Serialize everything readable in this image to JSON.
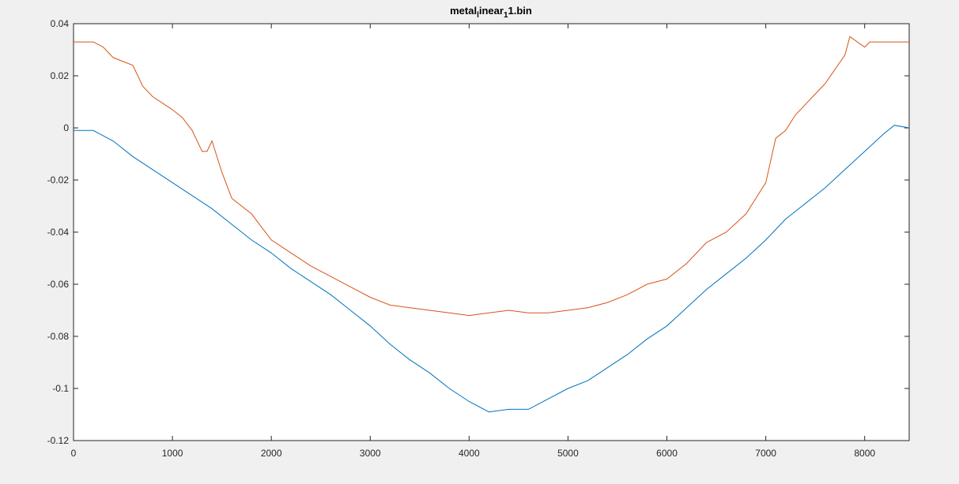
{
  "chart_data": {
    "type": "line",
    "title_parts": [
      {
        "text": "metal"
      },
      {
        "text": "l",
        "baseline": "sub"
      },
      {
        "text": "inear"
      },
      {
        "text": "1",
        "baseline": "sub"
      },
      {
        "text": "1.bin"
      }
    ],
    "xlim": [
      0,
      8450
    ],
    "xticks": [
      0,
      1000,
      2000,
      3000,
      4000,
      5000,
      6000,
      7000,
      8000
    ],
    "ylim": [
      -0.12,
      0.04
    ],
    "yticks": [
      -0.12,
      -0.1,
      -0.08,
      -0.06,
      -0.04,
      -0.02,
      0,
      0.02,
      0.04
    ],
    "grid": false,
    "series": [
      {
        "color": "#0072bd",
        "x": [
          0,
          200,
          400,
          600,
          800,
          1000,
          1200,
          1400,
          1600,
          1800,
          2000,
          2200,
          2400,
          2600,
          2800,
          3000,
          3200,
          3400,
          3600,
          3800,
          4000,
          4200,
          4400,
          4600,
          4800,
          5000,
          5200,
          5400,
          5600,
          5800,
          6000,
          6200,
          6400,
          6600,
          6800,
          7000,
          7200,
          7400,
          7600,
          7800,
          8000,
          8200,
          8300,
          8450
        ],
        "values": [
          -0.001,
          -0.001,
          -0.005,
          -0.011,
          -0.016,
          -0.021,
          -0.026,
          -0.031,
          -0.037,
          -0.043,
          -0.048,
          -0.054,
          -0.059,
          -0.064,
          -0.07,
          -0.076,
          -0.083,
          -0.089,
          -0.094,
          -0.1,
          -0.105,
          -0.109,
          -0.108,
          -0.108,
          -0.104,
          -0.1,
          -0.097,
          -0.092,
          -0.087,
          -0.081,
          -0.076,
          -0.069,
          -0.062,
          -0.056,
          -0.05,
          -0.043,
          -0.035,
          -0.029,
          -0.023,
          -0.016,
          -0.009,
          -0.002,
          0.001,
          0
        ]
      },
      {
        "color": "#d95319",
        "x": [
          0,
          200,
          300,
          400,
          600,
          700,
          800,
          1000,
          1100,
          1200,
          1300,
          1350,
          1400,
          1500,
          1600,
          1800,
          1900,
          2000,
          2200,
          2400,
          2600,
          2800,
          3000,
          3200,
          3400,
          3600,
          3800,
          4000,
          4200,
          4400,
          4600,
          4800,
          5000,
          5200,
          5400,
          5600,
          5800,
          6000,
          6200,
          6400,
          6600,
          6800,
          7000,
          7100,
          7200,
          7300,
          7400,
          7600,
          7800,
          7850,
          8000,
          8050,
          8450
        ],
        "values": [
          0.033,
          0.033,
          0.031,
          0.027,
          0.024,
          0.016,
          0.012,
          0.007,
          0.004,
          -0.001,
          -0.009,
          -0.009,
          -0.005,
          -0.017,
          -0.027,
          -0.033,
          -0.038,
          -0.043,
          -0.048,
          -0.053,
          -0.057,
          -0.061,
          -0.065,
          -0.068,
          -0.069,
          -0.07,
          -0.071,
          -0.072,
          -0.071,
          -0.07,
          -0.071,
          -0.071,
          -0.07,
          -0.069,
          -0.067,
          -0.064,
          -0.06,
          -0.058,
          -0.052,
          -0.044,
          -0.04,
          -0.033,
          -0.021,
          -0.004,
          -0.001,
          0.005,
          0.009,
          0.017,
          0.028,
          0.035,
          0.031,
          0.033,
          0.033
        ]
      }
    ]
  }
}
